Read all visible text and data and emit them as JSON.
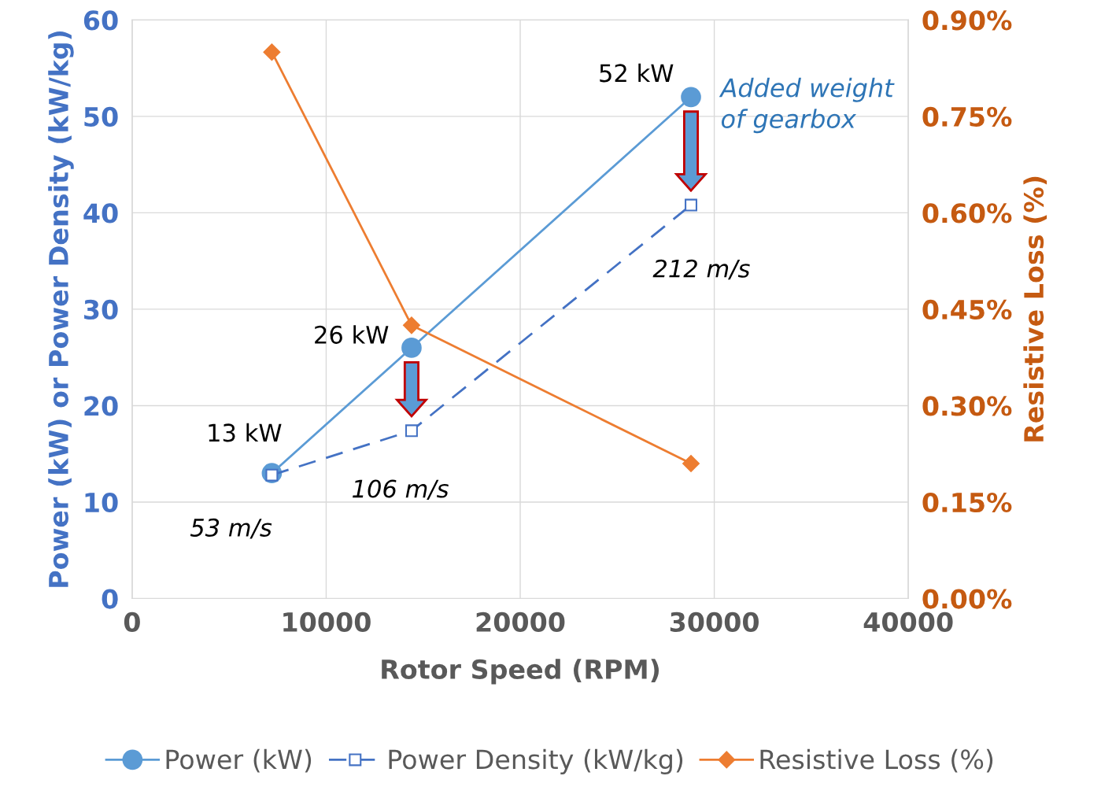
{
  "chart_data": {
    "type": "line",
    "xlabel": "Rotor Speed (RPM)",
    "ylabel": "Power (kW) or Power Density (kW/kg)",
    "y2label": "Resistive Loss (%)",
    "x": [
      7200,
      14400,
      28800
    ],
    "series": [
      {
        "name": "Power (kW)",
        "color": "#5b9bd5",
        "values": [
          13,
          26,
          52
        ],
        "marker": "circle",
        "line_style": "solid"
      },
      {
        "name": "Power Density (kW/kg)",
        "color": "#4472c4",
        "values": [
          12.8,
          17.4,
          40.8
        ],
        "marker": "square",
        "line_style": "dashed"
      },
      {
        "name": "Resistive Loss (%)",
        "color": "#ed7d31",
        "values": [
          0.85,
          0.425,
          0.21
        ],
        "marker": "diamond",
        "line_style": "solid",
        "axis": "y2"
      }
    ],
    "xlim": [
      0,
      40000
    ],
    "xticks": [
      0,
      10000,
      20000,
      30000,
      40000
    ],
    "ylim": [
      0,
      60
    ],
    "yticks": [
      0,
      10,
      20,
      30,
      40,
      50,
      60
    ],
    "y2lim": [
      0,
      0.9
    ],
    "y2ticks": [
      {
        "value": 0,
        "label": "0.00%"
      },
      {
        "value": 0.15,
        "label": "0.15%"
      },
      {
        "value": 0.3,
        "label": "0.30%"
      },
      {
        "value": 0.45,
        "label": "0.45%"
      },
      {
        "value": 0.6,
        "label": "0.60%"
      },
      {
        "value": 0.75,
        "label": "0.75%"
      },
      {
        "value": 0.9,
        "label": "0.90%"
      }
    ],
    "grid": true,
    "legend": "bottom",
    "annotations": [
      {
        "text": "13 kW",
        "x": 7200,
        "y": 13
      },
      {
        "text": "26 kW",
        "x": 14400,
        "y": 26
      },
      {
        "text": "52 kW",
        "x": 28800,
        "y": 52
      },
      {
        "text": "53 m/s",
        "x": 7200,
        "y": 12.8
      },
      {
        "text": "106 m/s",
        "x": 14400,
        "y": 17.4
      },
      {
        "text": "212 m/s",
        "x": 28800,
        "y": 40.8
      },
      "Added weight of gearbox"
    ]
  }
}
